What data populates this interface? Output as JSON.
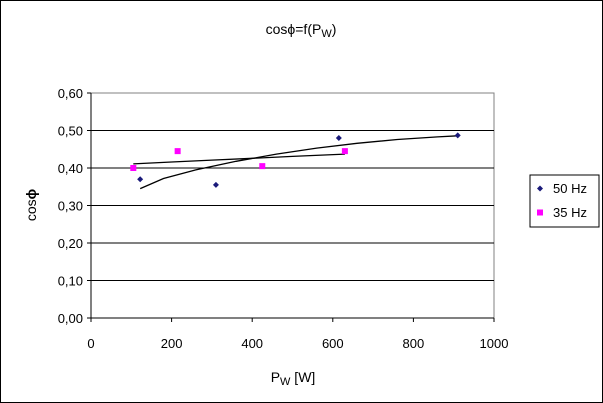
{
  "chart_data": {
    "type": "scatter",
    "title": {
      "prefix": "cos",
      "phi": "ϕ",
      "middle": "=f(P",
      "sub": "W",
      "suffix": ")"
    },
    "xlabel": {
      "main": "P",
      "sub": "W",
      "unit": " [W]"
    },
    "ylabel": {
      "main": "cos",
      "symbol": "ϕ"
    },
    "xlim": [
      0,
      1000
    ],
    "ylim": [
      0.0,
      0.6
    ],
    "xticks": [
      0,
      200,
      400,
      600,
      800,
      1000
    ],
    "xtick_labels": [
      "0",
      "200",
      "400",
      "600",
      "800",
      "1000"
    ],
    "yticks": [
      0.0,
      0.1,
      0.2,
      0.3,
      0.4,
      0.5,
      0.6
    ],
    "ytick_labels": [
      "0,00",
      "0,10",
      "0,20",
      "0,30",
      "0,40",
      "0,50",
      "0,60"
    ],
    "grid": "horizontal",
    "legend_position": "right",
    "series": [
      {
        "name": "50 Hz",
        "color": "#1a1a7a",
        "marker": "diamond",
        "points": [
          [
            122,
            0.37
          ],
          [
            310,
            0.355
          ],
          [
            615,
            0.48
          ],
          [
            910,
            0.487
          ]
        ],
        "trendline": [
          [
            122,
            0.345
          ],
          [
            180,
            0.372
          ],
          [
            260,
            0.395
          ],
          [
            360,
            0.418
          ],
          [
            460,
            0.437
          ],
          [
            560,
            0.453
          ],
          [
            660,
            0.466
          ],
          [
            760,
            0.476
          ],
          [
            860,
            0.483
          ],
          [
            910,
            0.486
          ]
        ]
      },
      {
        "name": "35 Hz",
        "color": "#ff00ff",
        "marker": "square",
        "points": [
          [
            105,
            0.4
          ],
          [
            215,
            0.445
          ],
          [
            425,
            0.405
          ],
          [
            630,
            0.445
          ]
        ],
        "trendline": [
          [
            105,
            0.411
          ],
          [
            200,
            0.416
          ],
          [
            300,
            0.421
          ],
          [
            400,
            0.426
          ],
          [
            500,
            0.431
          ],
          [
            630,
            0.437
          ]
        ]
      }
    ]
  }
}
